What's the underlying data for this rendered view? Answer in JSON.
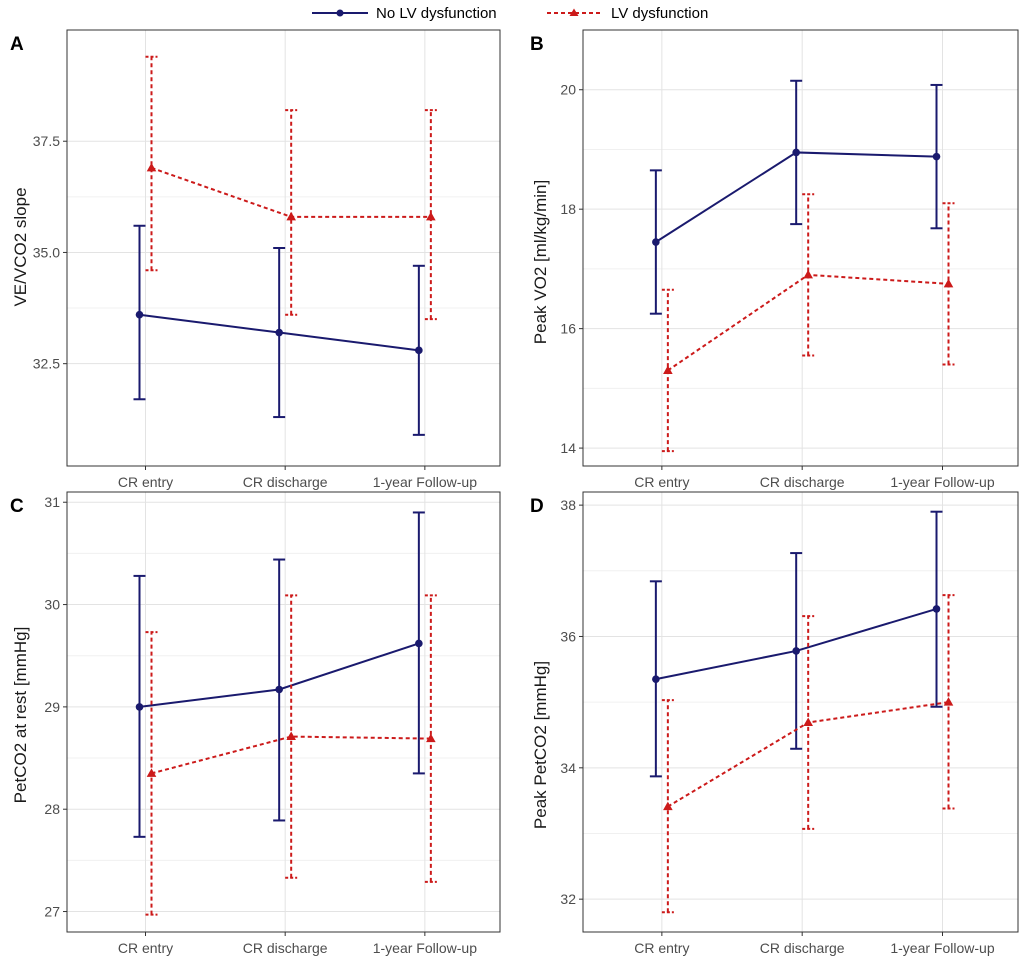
{
  "legend": {
    "items": [
      {
        "label": "No LV dysfunction",
        "color": "#1a1a6e",
        "marker": "circle",
        "dash": false
      },
      {
        "label": "LV dysfunction",
        "color": "#cc1a1a",
        "marker": "triangle",
        "dash": true
      }
    ]
  },
  "chart_data": [
    {
      "panel": "A",
      "type": "line",
      "title": "",
      "xlabel": "",
      "ylabel": "VE/VCO2 slope",
      "categories": [
        "CR entry",
        "CR discharge",
        "1-year Follow-up"
      ],
      "ylim": [
        30.2,
        40.0
      ],
      "yticks": [
        32.5,
        35.0,
        37.5
      ],
      "ytick_labels": [
        "32.5",
        "35.0",
        "37.5"
      ],
      "grid": true,
      "series": [
        {
          "name": "No LV dysfunction",
          "values": [
            33.6,
            33.2,
            32.8
          ],
          "lower": [
            31.7,
            31.3,
            30.9
          ],
          "upper": [
            35.6,
            35.1,
            34.7
          ]
        },
        {
          "name": "LV dysfunction",
          "values": [
            36.9,
            35.8,
            35.8
          ],
          "lower": [
            34.6,
            33.6,
            33.5
          ],
          "upper": [
            39.4,
            38.2,
            38.2
          ]
        }
      ]
    },
    {
      "panel": "B",
      "type": "line",
      "title": "",
      "xlabel": "",
      "ylabel": "Peak VO2 [ml/kg/min]",
      "categories": [
        "CR entry",
        "CR discharge",
        "1-year Follow-up"
      ],
      "ylim": [
        13.7,
        21.0
      ],
      "yticks": [
        14,
        16,
        18,
        20
      ],
      "ytick_labels": [
        "14",
        "16",
        "18",
        "20"
      ],
      "grid": true,
      "series": [
        {
          "name": "No LV dysfunction",
          "values": [
            17.45,
            18.95,
            18.88
          ],
          "lower": [
            16.25,
            17.75,
            17.68
          ],
          "upper": [
            18.65,
            20.15,
            20.08
          ]
        },
        {
          "name": "LV dysfunction",
          "values": [
            15.3,
            16.9,
            16.75
          ],
          "lower": [
            13.95,
            15.55,
            15.4
          ],
          "upper": [
            16.65,
            18.25,
            18.1
          ]
        }
      ]
    },
    {
      "panel": "C",
      "type": "line",
      "title": "",
      "xlabel": "",
      "ylabel": "PetCO2 at rest [mmHg]",
      "categories": [
        "CR entry",
        "CR discharge",
        "1-year Follow-up"
      ],
      "ylim": [
        26.8,
        31.1
      ],
      "yticks": [
        27,
        28,
        29,
        30,
        31
      ],
      "ytick_labels": [
        "27",
        "28",
        "29",
        "30",
        "31"
      ],
      "grid": true,
      "series": [
        {
          "name": "No LV dysfunction",
          "values": [
            29.0,
            29.17,
            29.62
          ],
          "lower": [
            27.73,
            27.89,
            28.35
          ],
          "upper": [
            30.28,
            30.44,
            30.9
          ]
        },
        {
          "name": "LV dysfunction",
          "values": [
            28.35,
            28.71,
            28.69
          ],
          "lower": [
            26.97,
            27.33,
            27.29
          ],
          "upper": [
            29.73,
            30.09,
            30.09
          ]
        }
      ]
    },
    {
      "panel": "D",
      "type": "line",
      "title": "",
      "xlabel": "",
      "ylabel": "Peak PetCO2 [mmHg]",
      "categories": [
        "CR entry",
        "CR discharge",
        "1-year Follow-up"
      ],
      "ylim": [
        31.5,
        38.2
      ],
      "yticks": [
        32,
        34,
        36,
        38
      ],
      "ytick_labels": [
        "32",
        "34",
        "36",
        "38"
      ],
      "grid": true,
      "series": [
        {
          "name": "No LV dysfunction",
          "values": [
            35.35,
            35.78,
            36.42
          ],
          "lower": [
            33.87,
            34.29,
            34.93
          ],
          "upper": [
            36.84,
            37.27,
            37.9
          ]
        },
        {
          "name": "LV dysfunction",
          "values": [
            33.41,
            34.69,
            35.0
          ],
          "lower": [
            31.8,
            33.07,
            33.38
          ],
          "upper": [
            35.03,
            36.31,
            36.63
          ]
        }
      ]
    }
  ]
}
